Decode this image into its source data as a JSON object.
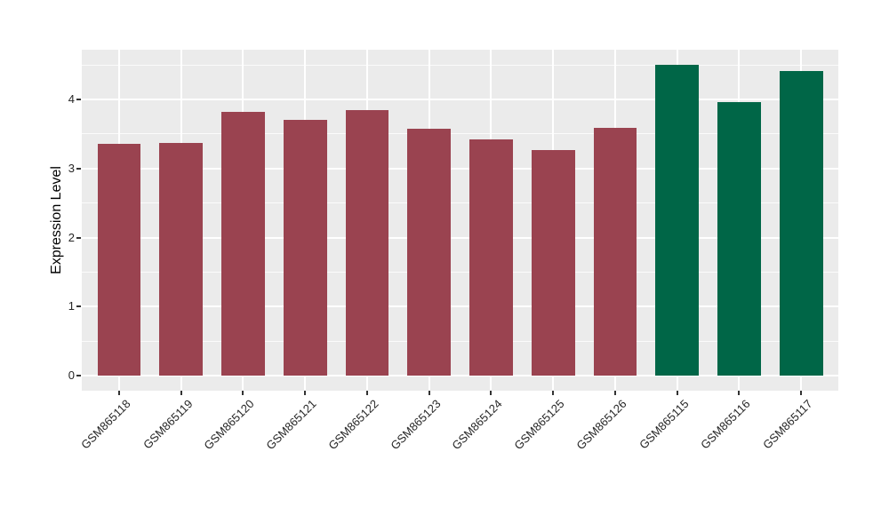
{
  "figure": {
    "background_color": "#FFFFFF"
  },
  "chart_data": {
    "type": "bar",
    "title": "",
    "xlabel": "",
    "ylabel": "Expression Level",
    "categories": [
      "GSM865118",
      "GSM865119",
      "GSM865120",
      "GSM865121",
      "GSM865122",
      "GSM865123",
      "GSM865124",
      "GSM865125",
      "GSM865126",
      "GSM865115",
      "GSM865116",
      "GSM865117"
    ],
    "values": [
      3.36,
      3.37,
      3.82,
      3.71,
      3.84,
      3.58,
      3.42,
      3.27,
      3.59,
      4.5,
      3.96,
      4.41
    ],
    "bar_colors": [
      "#9A4350",
      "#9A4350",
      "#9A4350",
      "#9A4350",
      "#9A4350",
      "#9A4350",
      "#9A4350",
      "#9A4350",
      "#9A4350",
      "#006647",
      "#006647",
      "#006647"
    ],
    "group_colors": {
      "maroon": "#9A4350",
      "green": "#006647"
    },
    "yticks": [
      0,
      1,
      2,
      3,
      4
    ],
    "minor_yticks": [
      0.5,
      1.5,
      2.5,
      3.5,
      4.5
    ],
    "ylim": [
      -0.225,
      4.725
    ],
    "grid": "on",
    "legend": "none",
    "panel_background": "#EBEBEB",
    "grid_color": "#FFFFFF",
    "tick_mark_color": "#333333",
    "tick_label_color": "#262626",
    "x_tick_rotation_deg": 45
  }
}
